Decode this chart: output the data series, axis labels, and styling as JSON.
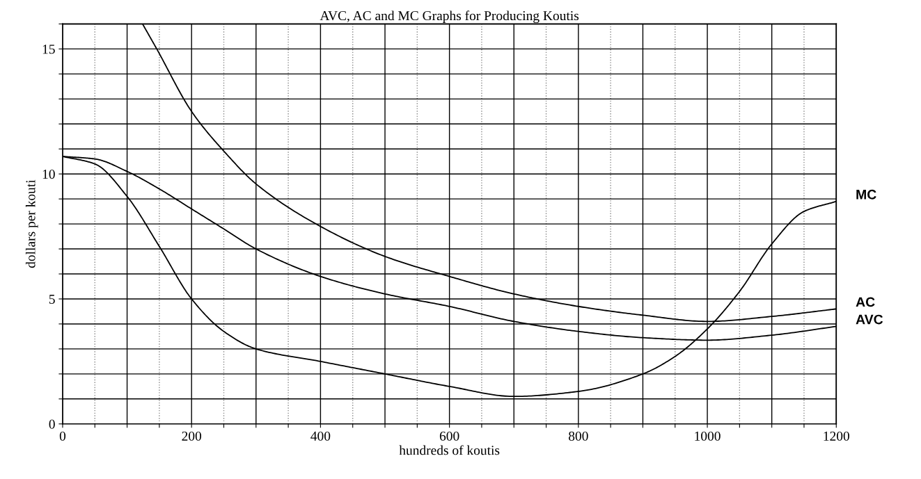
{
  "chart_data": {
    "type": "line",
    "title": "AVC, AC and MC Graphs for Producing Koutis",
    "xlabel": "hundreds of koutis",
    "ylabel": "dollars per kouti",
    "xlim": [
      0,
      1200
    ],
    "ylim": [
      0,
      16
    ],
    "xticks": [
      0,
      {
        "value": 50,
        "label": null
      },
      {
        "value": 100,
        "label": null
      },
      {
        "value": 150,
        "label": null
      },
      200,
      {
        "value": 250,
        "label": null
      },
      {
        "value": 300,
        "label": null
      },
      {
        "value": 350,
        "label": null
      },
      400,
      {
        "value": 450,
        "label": null
      },
      {
        "value": 500,
        "label": null
      },
      {
        "value": 550,
        "label": null
      },
      600,
      {
        "value": 650,
        "label": null
      },
      {
        "value": 700,
        "label": null
      },
      {
        "value": 750,
        "label": null
      },
      800,
      {
        "value": 850,
        "label": null
      },
      {
        "value": 900,
        "label": null
      },
      {
        "value": 950,
        "label": null
      },
      1000,
      {
        "value": 1050,
        "label": null
      },
      {
        "value": 1100,
        "label": null
      },
      {
        "value": 1150,
        "label": null
      },
      1200
    ],
    "yticks": [
      0,
      {
        "value": 1,
        "label": null
      },
      {
        "value": 2,
        "label": null
      },
      {
        "value": 3,
        "label": null
      },
      {
        "value": 4,
        "label": null
      },
      5,
      {
        "value": 6,
        "label": null
      },
      {
        "value": 7,
        "label": null
      },
      {
        "value": 8,
        "label": null
      },
      {
        "value": 9,
        "label": null
      },
      10,
      {
        "value": 11,
        "label": null
      },
      {
        "value": 12,
        "label": null
      },
      {
        "value": 13,
        "label": null
      },
      {
        "value": 14,
        "label": null
      },
      15,
      {
        "value": 16,
        "label": null
      }
    ],
    "grid": true,
    "marker": "none",
    "line_style": "solid",
    "series": [
      {
        "name": "MC",
        "color": "#000000",
        "x": [
          0,
          50,
          100,
          150,
          200,
          250,
          300,
          400,
          500,
          600,
          700,
          800,
          900,
          950,
          1000,
          1050,
          1100,
          1150,
          1200
        ],
        "values": [
          10.7,
          10.4,
          9.1,
          7.1,
          5.0,
          3.7,
          3.0,
          2.5,
          2.0,
          1.5,
          1.1,
          1.3,
          2.0,
          2.7,
          3.8,
          5.3,
          7.2,
          8.5,
          8.9
        ]
      },
      {
        "name": "AC",
        "color": "#000000",
        "x": [
          124,
          146,
          200,
          254,
          300,
          400,
          500,
          600,
          700,
          800,
          900,
          1000,
          1100,
          1200
        ],
        "values": [
          16,
          15,
          12.5,
          10.8,
          9.6,
          7.9,
          6.7,
          5.9,
          5.2,
          4.7,
          4.35,
          4.1,
          4.3,
          4.6
        ]
      },
      {
        "name": "AVC",
        "color": "#000000",
        "x": [
          0,
          50,
          100,
          150,
          200,
          250,
          300,
          400,
          500,
          600,
          700,
          800,
          900,
          1000,
          1100,
          1200
        ],
        "values": [
          10.7,
          10.6,
          10.1,
          9.4,
          8.6,
          7.8,
          7.0,
          5.9,
          5.2,
          4.7,
          4.1,
          3.7,
          3.45,
          3.35,
          3.55,
          3.9
        ]
      }
    ]
  }
}
